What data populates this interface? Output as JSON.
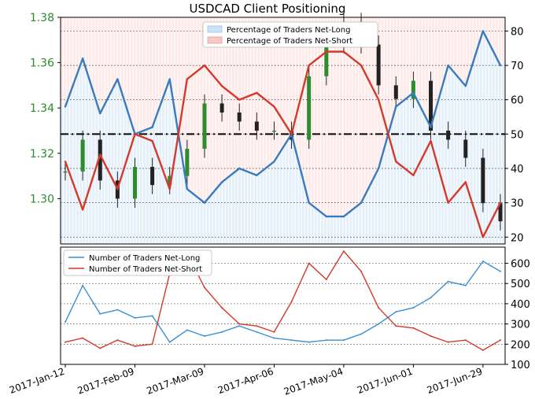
{
  "chart_data": [
    {
      "type": "line",
      "panel": "top",
      "title": "USDCAD Client Positioning",
      "x": [
        "2017-Jan-12",
        "2017-Jan-19",
        "2017-Jan-26",
        "2017-Feb-02",
        "2017-Feb-09",
        "2017-Feb-16",
        "2017-Feb-23",
        "2017-Mar-02",
        "2017-Mar-09",
        "2017-Mar-16",
        "2017-Mar-23",
        "2017-Mar-30",
        "2017-Apr-06",
        "2017-Apr-13",
        "2017-Apr-20",
        "2017-Apr-27",
        "2017-May-04",
        "2017-May-11",
        "2017-May-18",
        "2017-May-25",
        "2017-Jun-01",
        "2017-Jun-08",
        "2017-Jun-15",
        "2017-Jun-22",
        "2017-Jun-29",
        "2017-Jul-06"
      ],
      "x_ticks": [
        "2017-Jan-12",
        "2017-Feb-09",
        "2017-Mar-09",
        "2017-Apr-06",
        "2017-May-04",
        "2017-Jun-01",
        "2017-Jun-29"
      ],
      "y_left_ticks": [
        "1.30",
        "1.32",
        "1.34",
        "1.36",
        "1.38"
      ],
      "y_left_range": [
        1.28,
        1.38
      ],
      "y_right_ticks": [
        "20",
        "30",
        "40",
        "50",
        "60",
        "70",
        "80"
      ],
      "y_right_range": [
        18,
        84
      ],
      "reference_line": 50,
      "price": [
        1.312,
        1.326,
        1.308,
        1.3,
        1.314,
        1.306,
        1.31,
        1.322,
        1.342,
        1.338,
        1.334,
        1.33,
        1.33,
        1.326,
        1.354,
        1.368,
        1.378,
        1.368,
        1.35,
        1.344,
        1.352,
        1.33,
        1.326,
        1.318,
        1.298,
        1.29
      ],
      "series": [
        {
          "name": "Percentage of Traders Net-Long",
          "color": "#3a7bbf",
          "values": [
            58,
            72,
            56,
            66,
            50,
            52,
            66,
            34,
            30,
            36,
            40,
            38,
            42,
            50,
            30,
            26,
            26,
            30,
            40,
            58,
            62,
            52,
            70,
            64,
            80,
            70
          ]
        },
        {
          "name": "Percentage of Traders Net-Short",
          "color": "#d33a2c",
          "values": [
            42,
            28,
            44,
            34,
            50,
            48,
            34,
            66,
            70,
            64,
            60,
            62,
            58,
            50,
            70,
            74,
            74,
            70,
            60,
            42,
            38,
            48,
            30,
            36,
            20,
            30
          ]
        }
      ],
      "legend_position": "top-center"
    },
    {
      "type": "line",
      "panel": "bottom",
      "y_ticks": [
        "100",
        "200",
        "300",
        "400",
        "500",
        "600"
      ],
      "y_range": [
        100,
        680
      ],
      "series": [
        {
          "name": "Number of Traders Net-Long",
          "color": "#3a8fd6",
          "values": [
            310,
            490,
            350,
            370,
            330,
            340,
            210,
            270,
            240,
            260,
            290,
            260,
            230,
            220,
            210,
            220,
            220,
            250,
            300,
            360,
            380,
            430,
            510,
            490,
            610,
            560
          ]
        },
        {
          "name": "Number of Traders Net-Short",
          "color": "#d33a2c",
          "values": [
            210,
            230,
            180,
            220,
            190,
            200,
            550,
            650,
            480,
            380,
            300,
            290,
            260,
            410,
            600,
            520,
            660,
            560,
            380,
            290,
            280,
            240,
            210,
            220,
            170,
            220
          ]
        }
      ],
      "legend_position": "top-left"
    }
  ]
}
